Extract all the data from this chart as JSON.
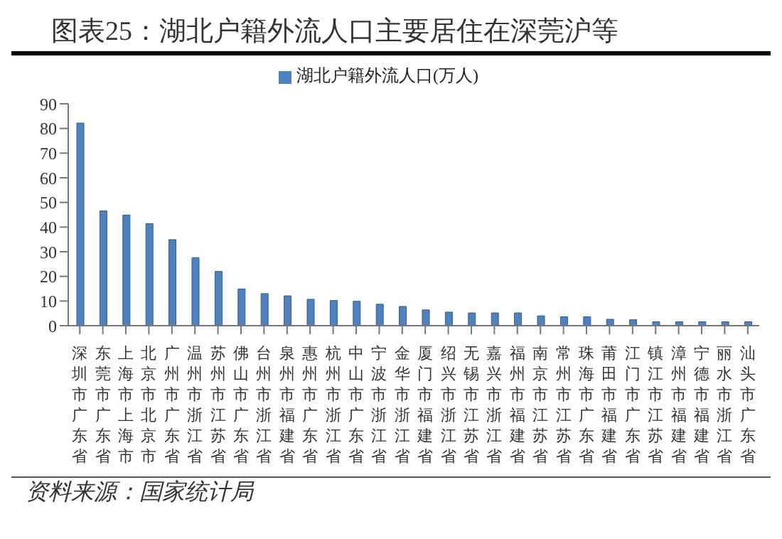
{
  "chart_data": {
    "type": "bar",
    "title": "图表25：湖北户籍外流人口主要居住在深莞沪等",
    "categories": [
      "深圳市广东省",
      "东莞市广东省",
      "上海市上海市",
      "北京市北京市",
      "广州市广东省",
      "温州市浙江省",
      "苏州市江苏省",
      "佛山市广东省",
      "台州市浙江省",
      "泉州市福建省",
      "惠州市广东省",
      "杭州市浙江省",
      "中山市广东省",
      "宁波市浙江省",
      "金华市浙江省",
      "厦门市福建省",
      "绍兴市浙江省",
      "无锡市江苏省",
      "嘉兴市浙江省",
      "福州市福建省",
      "南京市江苏省",
      "常州市江苏省",
      "珠海市广东省",
      "莆田市福建省",
      "江门市广东省",
      "镇江市江苏省",
      "漳州市福建省",
      "宁德市福建省",
      "丽水市浙江省",
      "汕头市广东省"
    ],
    "series": [
      {
        "name": "湖北户籍外流人口(万人)",
        "color": "#4f81bd",
        "values": [
          82.2,
          46.6,
          44.9,
          41.4,
          34.9,
          27.6,
          22,
          14.9,
          13,
          12.1,
          10.7,
          10.2,
          9.9,
          8.7,
          7.8,
          6.4,
          5.5,
          5.2,
          5.2,
          5.2,
          4,
          3.6,
          3.6,
          2.6,
          2.4,
          1.6,
          1.6,
          1.6,
          1.6,
          1.6
        ]
      }
    ],
    "ylim": [
      0,
      90
    ],
    "yticks": [
      0,
      10,
      20,
      30,
      40,
      50,
      60,
      70,
      80,
      90
    ],
    "legend": "top",
    "annotations": [
      "资料来源：国家统计局"
    ]
  }
}
